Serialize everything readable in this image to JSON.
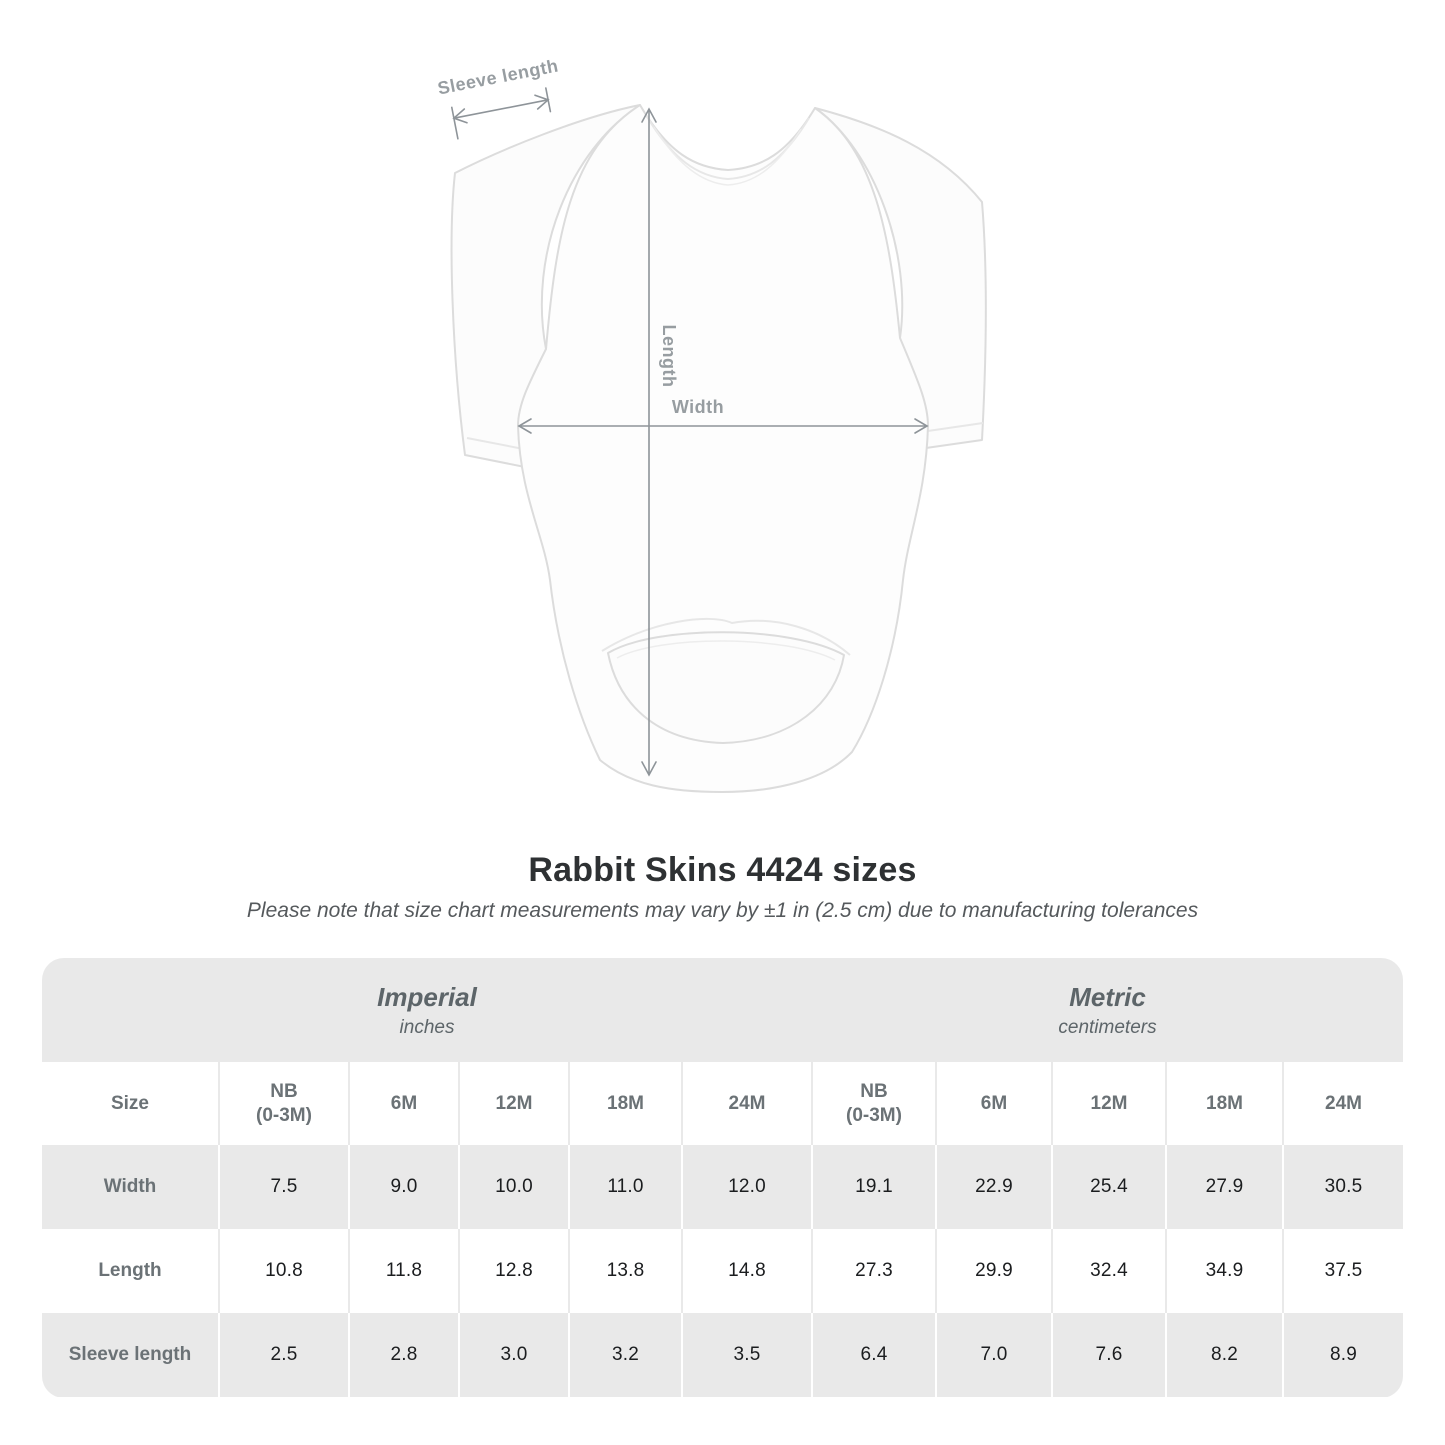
{
  "illustration": {
    "sleeve_length_label": "Sleeve length",
    "length_label": "Length",
    "width_label": "Width"
  },
  "title": "Rabbit Skins 4424 sizes",
  "subtitle": "Please note that size chart measurements may vary by ±1 in (2.5 cm) due to manufacturing tolerances",
  "table": {
    "sections": [
      {
        "label": "Imperial",
        "unit": "inches"
      },
      {
        "label": "Metric",
        "unit": "centimeters"
      }
    ],
    "size_header": "Size",
    "columns": [
      {
        "label": "NB",
        "sub": "(0-3M)"
      },
      {
        "label": "6M",
        "sub": ""
      },
      {
        "label": "12M",
        "sub": ""
      },
      {
        "label": "18M",
        "sub": ""
      },
      {
        "label": "24M",
        "sub": ""
      },
      {
        "label": "NB",
        "sub": "(0-3M)"
      },
      {
        "label": "6M",
        "sub": ""
      },
      {
        "label": "12M",
        "sub": ""
      },
      {
        "label": "18M",
        "sub": ""
      },
      {
        "label": "24M",
        "sub": ""
      }
    ],
    "rows": [
      {
        "label": "Width",
        "values": [
          "7.5",
          "9.0",
          "10.0",
          "11.0",
          "12.0",
          "19.1",
          "22.9",
          "25.4",
          "27.9",
          "30.5"
        ]
      },
      {
        "label": "Length",
        "values": [
          "10.8",
          "11.8",
          "12.8",
          "13.8",
          "14.8",
          "27.3",
          "29.9",
          "32.4",
          "34.9",
          "37.5"
        ]
      },
      {
        "label": "Sleeve length",
        "values": [
          "2.5",
          "2.8",
          "3.0",
          "3.2",
          "3.5",
          "6.4",
          "7.0",
          "7.6",
          "8.2",
          "8.9"
        ]
      }
    ]
  },
  "icons": {
    "dimension_arrows": "double-headed measurement arrows"
  },
  "colors": {
    "table_shade": "#e9e9e9",
    "dimension_gray": "#8e9499",
    "annotation_label_gray": "#979da1",
    "header_text": "#6b7276",
    "value_text": "#1b1d1f"
  }
}
